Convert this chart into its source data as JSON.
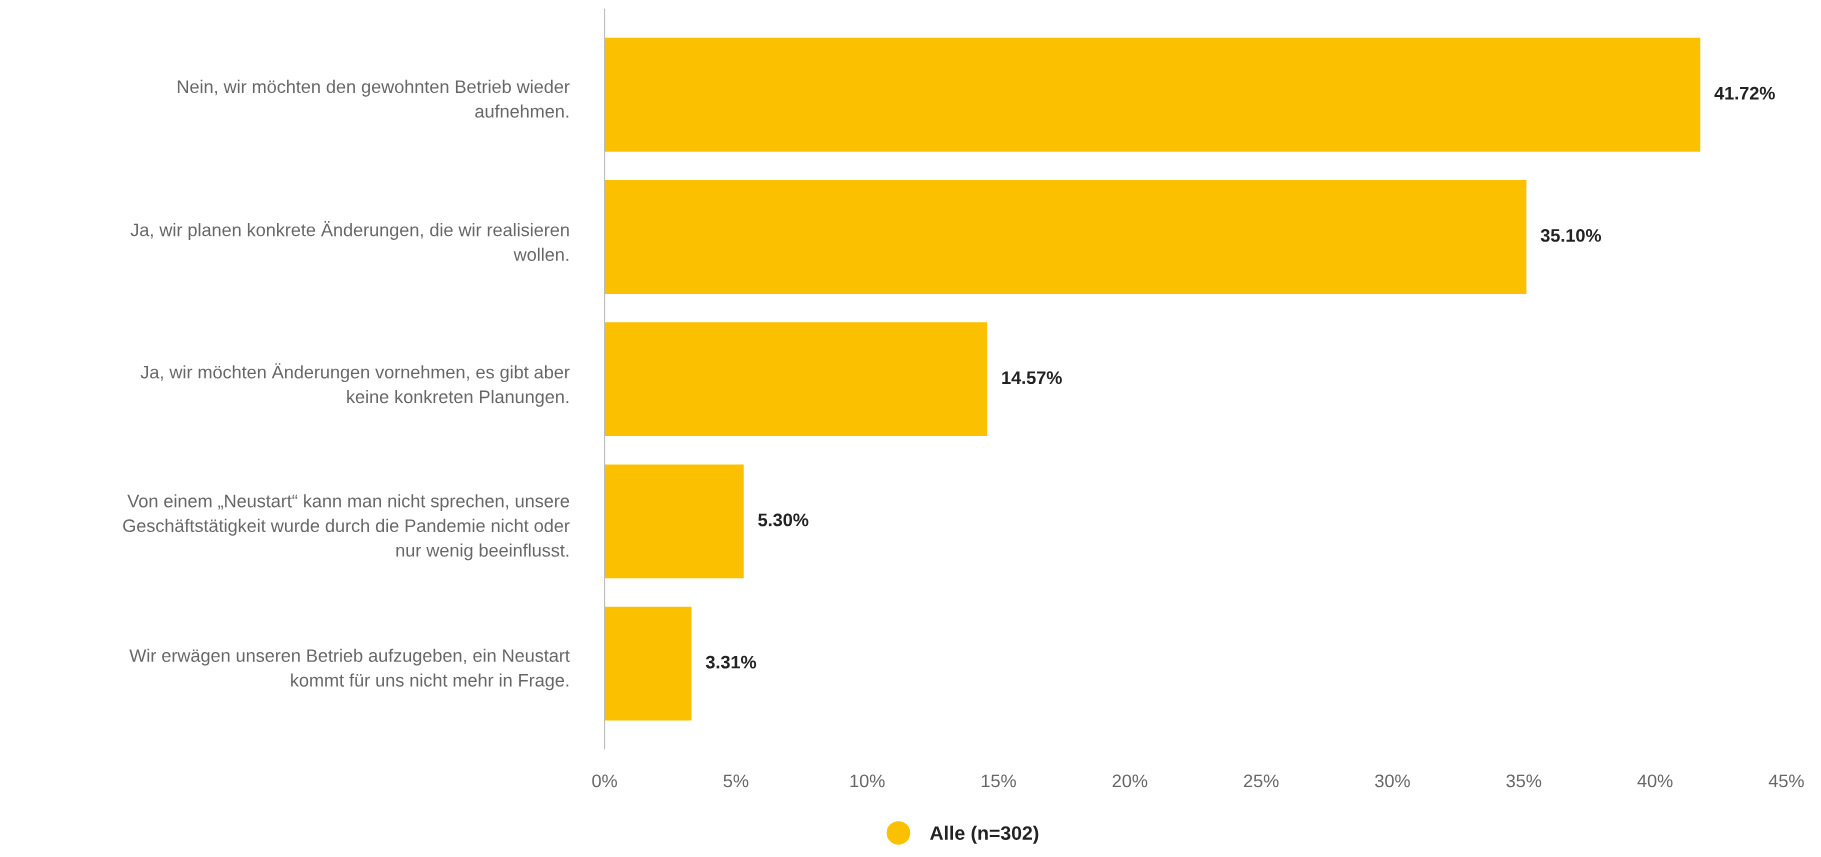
{
  "chart_data": {
    "type": "bar",
    "orientation": "horizontal",
    "categories": [
      "Nein, wir möchten den gewohnten Betrieb wieder\naufnehmen.",
      "Ja, wir planen konkrete Änderungen, die wir realisieren\nwollen.",
      "Ja, wir möchten Änderungen vornehmen, es gibt aber\nkeine konkreten Planungen.",
      "Von einem „Neustart“ kann man nicht sprechen, unsere\nGeschäftstätigkeit wurde durch die Pandemie nicht oder\nnur wenig beeinflusst.",
      "Wir erwägen unseren Betrieb aufzugeben, ein Neustart\nkommt für uns nicht mehr in Frage."
    ],
    "series": [
      {
        "name": "Alle (n=302)",
        "color": "#fbc000",
        "values": [
          41.72,
          35.1,
          14.57,
          5.3,
          3.31
        ],
        "value_labels": [
          "41.72%",
          "35.10%",
          "14.57%",
          "5.30%",
          "3.31%"
        ]
      }
    ],
    "xlim": [
      0,
      45
    ],
    "xticks": [
      {
        "value": 0,
        "label": "0%"
      },
      {
        "value": 5,
        "label": "5%"
      },
      {
        "value": 10,
        "label": "10%"
      },
      {
        "value": 15,
        "label": "15%"
      },
      {
        "value": 20,
        "label": "20%"
      },
      {
        "value": 25,
        "label": "25%"
      },
      {
        "value": 30,
        "label": "30%"
      },
      {
        "value": 35,
        "label": "35%"
      },
      {
        "value": 40,
        "label": "40%"
      },
      {
        "value": 45,
        "label": "45%"
      }
    ],
    "grid": false,
    "legend": "bottom"
  }
}
